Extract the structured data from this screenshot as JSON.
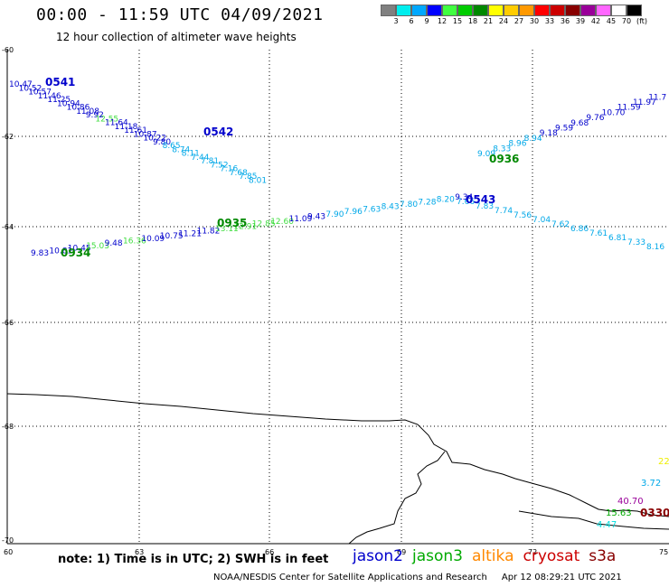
{
  "header": {
    "title": "00:00 - 11:59 UTC 04/09/2021",
    "subtitle": "12 hour collection of altimeter wave heights"
  },
  "legend": {
    "colors": [
      "#808080",
      "#00eeee",
      "#00a8ff",
      "#0000ff",
      "#40ff40",
      "#00cc00",
      "#008800",
      "#ffff00",
      "#ffcc00",
      "#ff9900",
      "#ff0000",
      "#cc0000",
      "#880000",
      "#990099",
      "#ff66ff",
      "#ffffff",
      "#000000"
    ],
    "labels": [
      "3",
      "6",
      "9",
      "12",
      "15",
      "18",
      "21",
      "24",
      "27",
      "30",
      "33",
      "36",
      "39",
      "42",
      "45",
      "70",
      "(ft)"
    ]
  },
  "axes": {
    "y_labels": [
      "-60",
      "-62",
      "-64",
      "-66",
      "-68",
      "-70"
    ],
    "x_labels": [
      "60",
      "63",
      "66",
      "69",
      "72",
      "75"
    ]
  },
  "tracks": [
    {
      "pass": "0541",
      "color": "#0000cc",
      "values": [
        {
          "t": "10.47",
          "c": "#0000cc"
        },
        {
          "t": "10.52",
          "c": "#0000cc"
        },
        {
          "t": "10.57",
          "c": "#0000cc"
        },
        {
          "t": "11.46",
          "c": "#0000cc"
        },
        {
          "t": "11.25",
          "c": "#0000cc"
        },
        {
          "t": "10.94",
          "c": "#0000cc"
        },
        {
          "t": "10.86",
          "c": "#0000cc"
        },
        {
          "t": "11.08",
          "c": "#0000cc"
        },
        {
          "t": "9.92",
          "c": "#0000cc"
        },
        {
          "t": "12.55",
          "c": "#40dd40"
        },
        {
          "t": "11.64",
          "c": "#0000cc"
        },
        {
          "t": "11.18",
          "c": "#0000cc"
        },
        {
          "t": "11.61",
          "c": "#0000cc"
        },
        {
          "t": "10.87",
          "c": "#0000cc"
        },
        {
          "t": "10.22",
          "c": "#0000cc"
        },
        {
          "t": "9.80",
          "c": "#0000cc"
        },
        {
          "t": "8.65",
          "c": "#00a8e8"
        },
        {
          "t": "8.74",
          "c": "#00a8e8"
        },
        {
          "t": "8.11",
          "c": "#00a8e8"
        },
        {
          "t": "7.44",
          "c": "#00a8e8"
        },
        {
          "t": "7.81",
          "c": "#00a8e8"
        },
        {
          "t": "7.52",
          "c": "#00a8e8"
        },
        {
          "t": "7.16",
          "c": "#00a8e8"
        },
        {
          "t": "7.68",
          "c": "#00a8e8"
        },
        {
          "t": "7.85",
          "c": "#00a8e8"
        },
        {
          "t": "8.01",
          "c": "#00a8e8"
        }
      ]
    },
    {
      "pass": "0542",
      "color": "#0000cc",
      "values": []
    },
    {
      "pass": "0543",
      "color": "#0000cc",
      "values": [
        {
          "t": "7.66",
          "c": "#00a8e8"
        },
        {
          "t": "7.83",
          "c": "#00a8e8"
        },
        {
          "t": "7.74",
          "c": "#00a8e8"
        },
        {
          "t": "7.56",
          "c": "#00a8e8"
        },
        {
          "t": "7.04",
          "c": "#00a8e8"
        },
        {
          "t": "7.62",
          "c": "#00a8e8"
        },
        {
          "t": "6.86",
          "c": "#00a8e8"
        },
        {
          "t": "7.61",
          "c": "#00a8e8"
        },
        {
          "t": "6.81",
          "c": "#00a8e8"
        },
        {
          "t": "7.33",
          "c": "#00a8e8"
        },
        {
          "t": "8.16",
          "c": "#00a8e8"
        }
      ]
    },
    {
      "pass": "0934",
      "color": "#008800",
      "values": [
        {
          "t": "9.83",
          "c": "#0000cc"
        },
        {
          "t": "10.81",
          "c": "#0000cc"
        },
        {
          "t": "10.45",
          "c": "#0000cc"
        },
        {
          "t": "15.03",
          "c": "#40dd40"
        },
        {
          "t": "9.48",
          "c": "#0000cc"
        },
        {
          "t": "16.36",
          "c": "#40dd40"
        },
        {
          "t": "10.09",
          "c": "#0000cc"
        },
        {
          "t": "10.75",
          "c": "#0000cc"
        },
        {
          "t": "11.21",
          "c": "#0000cc"
        },
        {
          "t": "11.82",
          "c": "#0000cc"
        },
        {
          "t": "13.11",
          "c": "#40dd40"
        },
        {
          "t": "12.91",
          "c": "#40dd40"
        },
        {
          "t": "12.85",
          "c": "#40dd40"
        },
        {
          "t": "12.60",
          "c": "#40dd40"
        },
        {
          "t": "11.09",
          "c": "#0000cc"
        },
        {
          "t": "9.43",
          "c": "#0000cc"
        },
        {
          "t": "7.90",
          "c": "#00a8e8"
        },
        {
          "t": "7.96",
          "c": "#00a8e8"
        },
        {
          "t": "7.63",
          "c": "#00a8e8"
        },
        {
          "t": "8.43",
          "c": "#00a8e8"
        },
        {
          "t": "7.80",
          "c": "#00a8e8"
        },
        {
          "t": "7.28",
          "c": "#00a8e8"
        },
        {
          "t": "8.20",
          "c": "#00a8e8"
        },
        {
          "t": "9.34",
          "c": "#0000cc"
        }
      ]
    },
    {
      "pass": "0935",
      "color": "#008800",
      "values": []
    },
    {
      "pass": "0936",
      "color": "#008800",
      "values": [
        {
          "t": "9.09",
          "c": "#00a8e8"
        },
        {
          "t": "8.33",
          "c": "#00a8e8"
        },
        {
          "t": "8.96",
          "c": "#00a8e8"
        },
        {
          "t": "8.94",
          "c": "#00a8e8"
        },
        {
          "t": "9.18",
          "c": "#0000cc"
        },
        {
          "t": "9.59",
          "c": "#0000cc"
        },
        {
          "t": "9.68",
          "c": "#0000cc"
        },
        {
          "t": "9.76",
          "c": "#0000cc"
        },
        {
          "t": "10.70",
          "c": "#0000cc"
        },
        {
          "t": "11.59",
          "c": "#0000cc"
        },
        {
          "t": "11.97",
          "c": "#0000cc"
        },
        {
          "t": "11.7",
          "c": "#0000cc"
        }
      ]
    }
  ],
  "edge_values": [
    {
      "t": "22",
      "c": "#eeee00"
    },
    {
      "t": "3.72",
      "c": "#00a8e8"
    },
    {
      "t": "40.70",
      "c": "#990099"
    },
    {
      "t": "15.63",
      "c": "#00aa00"
    },
    {
      "t": "4.47",
      "c": "#00dddd"
    },
    {
      "t": "0330",
      "c": "#880000"
    }
  ],
  "note": "note: 1) Time is in UTC; 2) SWH is in feet",
  "satellites": [
    {
      "name": "jason2",
      "color": "#0000cc"
    },
    {
      "name": "jason3",
      "color": "#00aa00"
    },
    {
      "name": "altika",
      "color": "#ff8800"
    },
    {
      "name": "cryosat",
      "color": "#cc0000"
    },
    {
      "name": "s3a",
      "color": "#880000"
    }
  ],
  "footer": {
    "source": "NOAA/NESDIS Center for Satellite Applications and Research",
    "date": "Apr 12 08:29:21 UTC 2021"
  }
}
